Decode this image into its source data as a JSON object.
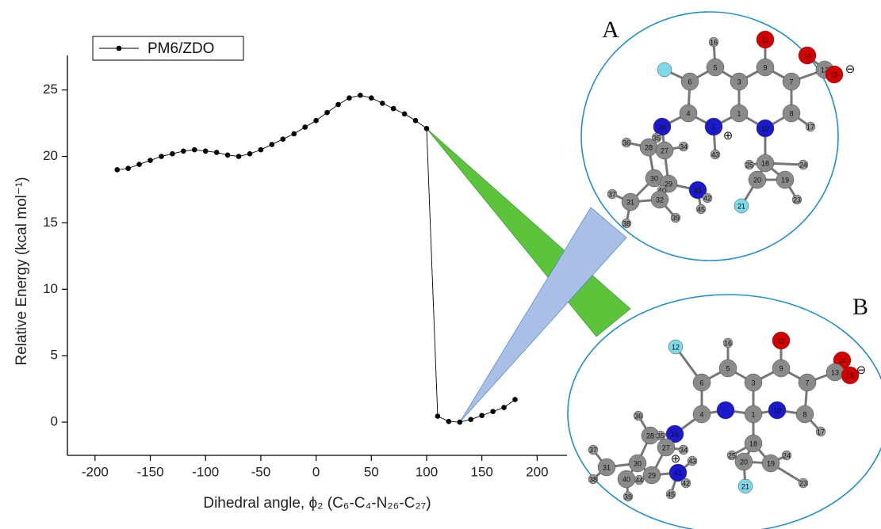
{
  "chart_data": {
    "type": "line",
    "x_label": "Dihedral angle, ϕ₂ (C₆-C₄-N₂₆-C₂₇)",
    "y_label": "Relative Energy (kcal mol⁻¹)",
    "x": [
      -180,
      -170,
      -160,
      -150,
      -140,
      -130,
      -120,
      -110,
      -100,
      -90,
      -80,
      -70,
      -60,
      -50,
      -40,
      -30,
      -20,
      -10,
      0,
      10,
      20,
      30,
      40,
      50,
      60,
      70,
      80,
      90,
      100,
      110,
      120,
      130,
      140,
      150,
      160,
      170,
      180
    ],
    "series": [
      {
        "name": "PM6/ZDO",
        "color": "#000000",
        "values": [
          19.0,
          19.1,
          19.4,
          19.7,
          20.0,
          20.2,
          20.4,
          20.5,
          20.4,
          20.3,
          20.1,
          20.0,
          20.2,
          20.5,
          20.9,
          21.3,
          21.7,
          22.2,
          22.7,
          23.3,
          23.9,
          24.4,
          24.6,
          24.4,
          24.0,
          23.6,
          23.2,
          22.7,
          22.1,
          0.45,
          0.05,
          0.0,
          0.2,
          0.5,
          0.8,
          1.1,
          1.7
        ]
      }
    ],
    "xlim": [
      -225,
      227
    ],
    "ylim": [
      -2.5,
      27.6
    ],
    "xticks": [
      -200,
      -150,
      -100,
      -50,
      0,
      50,
      100,
      150,
      200
    ],
    "yticks": [
      0,
      5,
      10,
      15,
      20,
      25
    ],
    "legend": "top-left"
  },
  "molecules": [
    {
      "label": "A",
      "charges": [
        "⊕",
        "⊖"
      ],
      "atoms": [
        "16",
        "11",
        "5",
        "9",
        "3",
        "7",
        "14",
        "13",
        "15",
        "6",
        "4",
        "1",
        "2",
        "10",
        "8",
        "17",
        "26",
        "35",
        "28",
        "36",
        "27",
        "34",
        "43",
        "18",
        "25",
        "24",
        "20",
        "19",
        "30",
        "29",
        "40",
        "41",
        "42",
        "45",
        "37",
        "31",
        "32",
        "38",
        "39",
        "21",
        "23"
      ]
    },
    {
      "label": "B",
      "charges": [
        "⊕",
        "⊖"
      ],
      "atoms": [
        "16",
        "11",
        "5",
        "9",
        "3",
        "7",
        "14",
        "13",
        "15",
        "6",
        "4",
        "1",
        "10",
        "8",
        "17",
        "12",
        "36",
        "28",
        "35",
        "26",
        "27",
        "34",
        "37",
        "31",
        "38",
        "30",
        "40",
        "44",
        "29",
        "41",
        "43",
        "42",
        "45",
        "39",
        "18",
        "25",
        "20",
        "19",
        "24",
        "23",
        "21"
      ]
    }
  ]
}
